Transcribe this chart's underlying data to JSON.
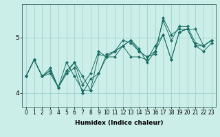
{
  "xlabel": "Humidex (Indice chaleur)",
  "bg_color": "#cceee8",
  "line_color": "#1a6e64",
  "grid_color": "#99cccc",
  "spine_color": "#336666",
  "xlim": [
    -0.5,
    23.5
  ],
  "ylim": [
    3.75,
    5.6
  ],
  "yticks": [
    4,
    5
  ],
  "xticks": [
    0,
    1,
    2,
    3,
    4,
    5,
    6,
    7,
    8,
    9,
    10,
    11,
    12,
    13,
    14,
    15,
    16,
    17,
    18,
    19,
    20,
    21,
    22,
    23
  ],
  "series": [
    [
      4.3,
      4.6,
      4.3,
      4.4,
      4.1,
      4.4,
      4.55,
      4.3,
      4.05,
      4.35,
      4.7,
      4.75,
      4.85,
      4.95,
      4.75,
      4.65,
      4.75,
      5.05,
      4.6,
      5.1,
      5.15,
      4.85,
      4.75,
      4.9
    ],
    [
      4.3,
      4.6,
      4.3,
      4.35,
      4.1,
      4.55,
      4.3,
      4.05,
      4.05,
      4.7,
      4.65,
      4.75,
      4.85,
      4.65,
      4.65,
      4.6,
      4.85,
      5.05,
      4.6,
      5.1,
      5.15,
      4.85,
      4.85,
      4.95
    ],
    [
      4.3,
      4.6,
      4.3,
      4.45,
      4.1,
      4.35,
      4.55,
      4.15,
      4.35,
      4.75,
      4.65,
      4.75,
      4.95,
      4.9,
      4.75,
      4.65,
      4.7,
      5.35,
      5.05,
      5.15,
      5.15,
      5.15,
      4.85,
      4.95
    ],
    [
      4.3,
      4.6,
      4.3,
      4.4,
      4.1,
      4.35,
      4.45,
      4.0,
      4.25,
      4.35,
      4.65,
      4.65,
      4.85,
      4.95,
      4.8,
      4.55,
      4.75,
      5.3,
      4.95,
      5.2,
      5.2,
      4.9,
      4.85,
      4.95
    ]
  ],
  "xlabel_fontsize": 6.5,
  "tick_fontsize": 5.5,
  "ytick_fontsize": 6.5,
  "linewidth": 0.7,
  "markersize": 2.2
}
